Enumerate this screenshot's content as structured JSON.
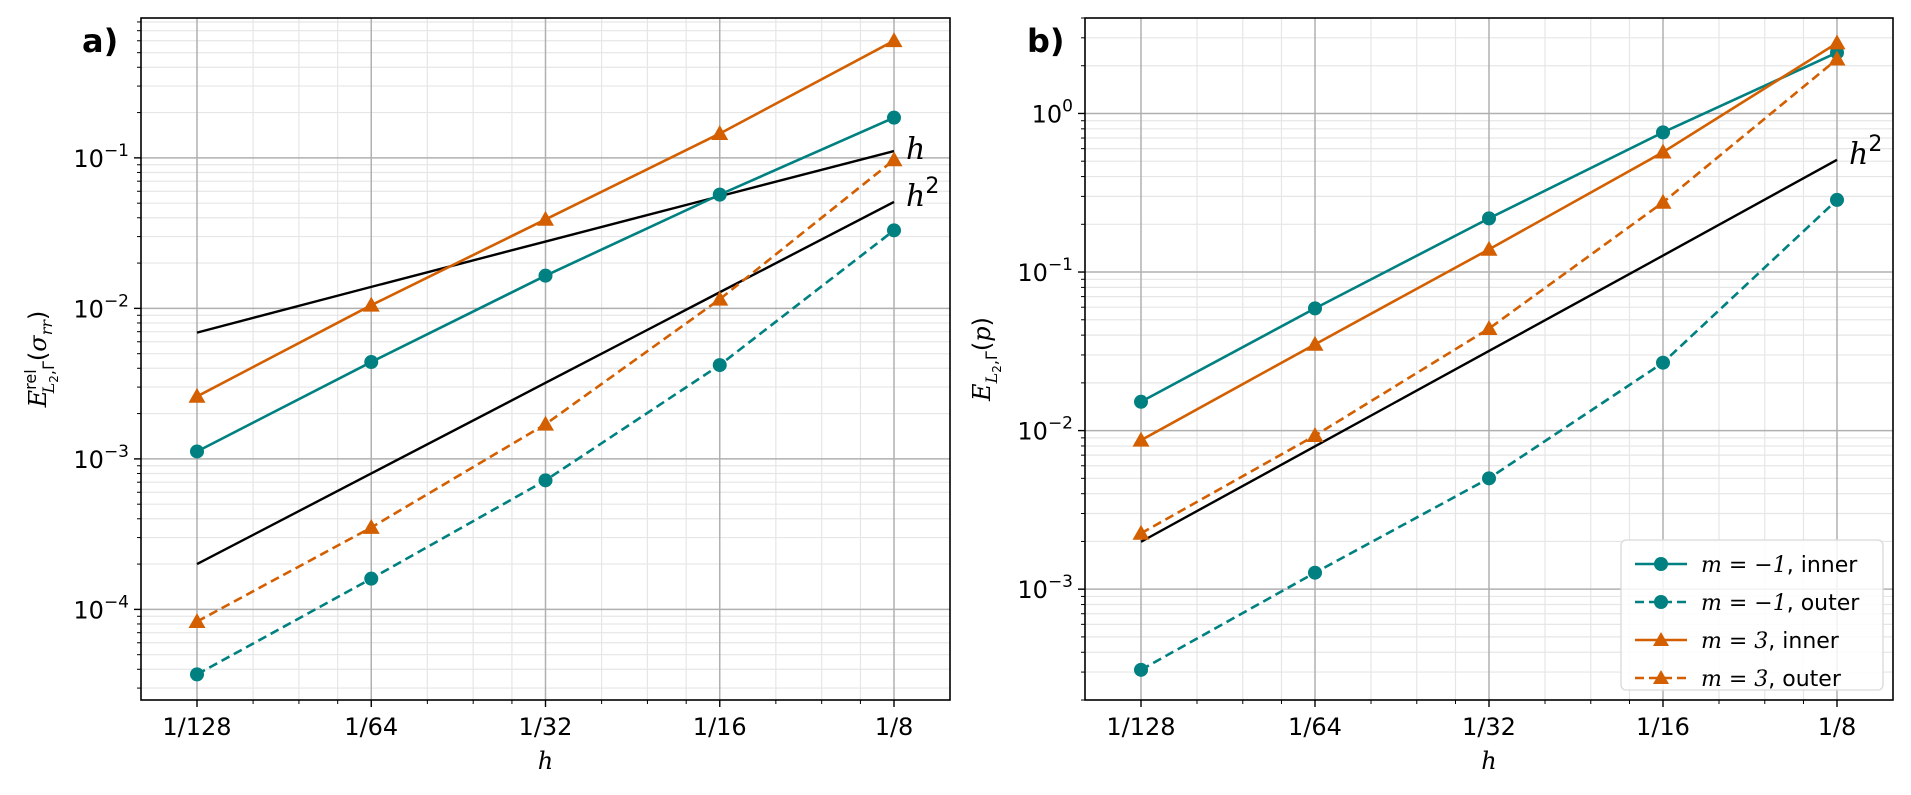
{
  "colors": {
    "teal": "#008080",
    "orange": "#d35f00",
    "black": "#000000",
    "grid_major": "#b0b0b0",
    "grid_minor": "#e6e6e6"
  },
  "x_tick_labels": [
    "1/128",
    "1/64",
    "1/32",
    "1/16",
    "1/8"
  ],
  "chart_data": [
    {
      "type": "line",
      "panel_label": "a)",
      "xlabel": "h",
      "ylabel": "E^rel_{L2,Γ}(σ_rr)",
      "yscale": "log",
      "xscale": "log2",
      "x": [
        0.0078125,
        0.015625,
        0.03125,
        0.0625,
        0.125
      ],
      "categories": [
        "1/128",
        "1/64",
        "1/32",
        "1/16",
        "1/8"
      ],
      "ylim": [
        2.5e-05,
        0.85
      ],
      "y_ticks": [
        0.0001,
        0.001,
        0.01,
        0.1
      ],
      "y_tick_labels": [
        "10^-4",
        "10^-3",
        "10^-2",
        "10^-1"
      ],
      "grid": true,
      "series": [
        {
          "name": "m = −1, inner",
          "color": "#008080",
          "style": "solid",
          "marker": "circle",
          "values": [
            0.00112,
            0.0044,
            0.0165,
            0.057,
            0.185
          ]
        },
        {
          "name": "m = −1, outer",
          "color": "#008080",
          "style": "dashed",
          "marker": "circle",
          "values": [
            3.7e-05,
            0.00016,
            0.00072,
            0.0042,
            0.033
          ]
        },
        {
          "name": "m = 3, inner",
          "color": "#d35f00",
          "style": "solid",
          "marker": "triangle",
          "values": [
            0.0026,
            0.0105,
            0.039,
            0.145,
            0.6
          ]
        },
        {
          "name": "m = 3, outer",
          "color": "#d35f00",
          "style": "dashed",
          "marker": "triangle",
          "values": [
            8.3e-05,
            0.00035,
            0.0017,
            0.0115,
            0.097
          ]
        }
      ],
      "reference_lines": [
        {
          "label_base": "h",
          "label_exp": "",
          "color": "#000000",
          "values": [
            0.0069,
            0.0139,
            0.0278,
            0.0556,
            0.111
          ]
        },
        {
          "label_base": "h",
          "label_exp": "2",
          "color": "#000000",
          "values": [
            0.0002,
            0.0008,
            0.0032,
            0.0128,
            0.051
          ]
        }
      ],
      "legend": null
    },
    {
      "type": "line",
      "panel_label": "b)",
      "xlabel": "h",
      "ylabel": "E_{L2,Γ}(p)",
      "yscale": "log",
      "xscale": "log2",
      "x": [
        0.0078125,
        0.015625,
        0.03125,
        0.0625,
        0.125
      ],
      "categories": [
        "1/128",
        "1/64",
        "1/32",
        "1/16",
        "1/8"
      ],
      "ylim": [
        0.0002,
        4.0
      ],
      "y_ticks": [
        0.001,
        0.01,
        0.1,
        1
      ],
      "y_tick_labels": [
        "10^-3",
        "10^-2",
        "10^-1",
        "10^0"
      ],
      "grid": true,
      "series": [
        {
          "name": "m = −1, inner",
          "color": "#008080",
          "style": "solid",
          "marker": "circle",
          "values": [
            0.0152,
            0.059,
            0.218,
            0.76,
            2.42
          ]
        },
        {
          "name": "m = −1, outer",
          "color": "#008080",
          "style": "dashed",
          "marker": "circle",
          "values": [
            0.00031,
            0.00127,
            0.005,
            0.0268,
            0.285
          ]
        },
        {
          "name": "m = 3, inner",
          "color": "#d35f00",
          "style": "solid",
          "marker": "triangle",
          "values": [
            0.0087,
            0.035,
            0.139,
            0.57,
            2.78
          ]
        },
        {
          "name": "m = 3, outer",
          "color": "#d35f00",
          "style": "dashed",
          "marker": "triangle",
          "values": [
            0.00225,
            0.0093,
            0.044,
            0.275,
            2.2
          ]
        }
      ],
      "reference_lines": [
        {
          "label_base": "h",
          "label_exp": "2",
          "color": "#000000",
          "values": [
            0.00199,
            0.00796,
            0.0318,
            0.127,
            0.51
          ]
        }
      ],
      "legend": {
        "placement": "lower-right",
        "entries": [
          {
            "math": "m = −1",
            "text": ", inner",
            "color": "#008080",
            "style": "solid",
            "marker": "circle"
          },
          {
            "math": "m = −1",
            "text": ", outer",
            "color": "#008080",
            "style": "dashed",
            "marker": "circle"
          },
          {
            "math": "m = 3",
            "text": ", inner",
            "color": "#d35f00",
            "style": "solid",
            "marker": "triangle"
          },
          {
            "math": "m = 3",
            "text": ", outer",
            "color": "#d35f00",
            "style": "dashed",
            "marker": "triangle"
          }
        ]
      }
    }
  ]
}
